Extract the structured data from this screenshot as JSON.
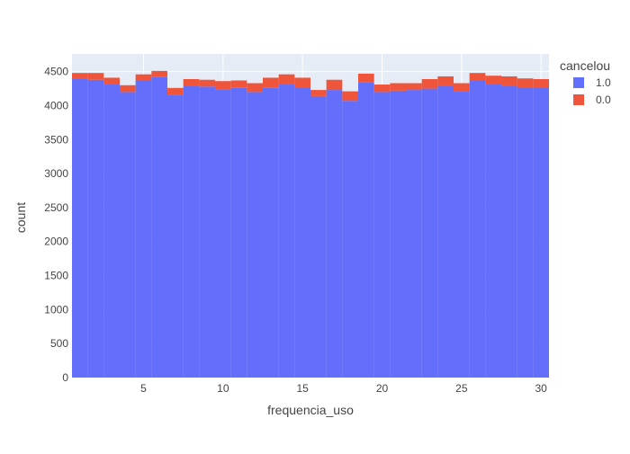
{
  "chart_data": {
    "type": "bar",
    "barmode": "stack",
    "xlabel": "frequencia_uso",
    "ylabel": "count",
    "xlim": [
      0.5,
      30.5
    ],
    "ylim": [
      0,
      4760
    ],
    "x_ticks": [
      5,
      10,
      15,
      20,
      25,
      30
    ],
    "y_ticks": [
      0,
      500,
      1000,
      1500,
      2000,
      2500,
      3000,
      3500,
      4000,
      4500
    ],
    "grid": true,
    "legend_title": "cancelou",
    "legend_position": "top-right",
    "x": [
      1,
      2,
      3,
      4,
      5,
      6,
      7,
      8,
      9,
      10,
      11,
      12,
      13,
      14,
      15,
      16,
      17,
      18,
      19,
      20,
      21,
      22,
      23,
      24,
      25,
      26,
      27,
      28,
      29,
      30
    ],
    "series": [
      {
        "name": "1.0",
        "color": "#636efa",
        "values": [
          4390,
          4380,
          4310,
          4200,
          4370,
          4420,
          4160,
          4290,
          4280,
          4240,
          4260,
          4200,
          4260,
          4310,
          4270,
          4140,
          4230,
          4070,
          4340,
          4200,
          4220,
          4230,
          4250,
          4290,
          4210,
          4370,
          4310,
          4290,
          4270,
          4270
        ]
      },
      {
        "name": "0.0",
        "color": "#ef553b",
        "values": [
          90,
          100,
          100,
          100,
          90,
          90,
          100,
          100,
          100,
          120,
          110,
          130,
          150,
          150,
          140,
          90,
          150,
          140,
          130,
          110,
          110,
          100,
          140,
          140,
          120,
          110,
          130,
          140,
          130,
          120
        ]
      }
    ]
  }
}
